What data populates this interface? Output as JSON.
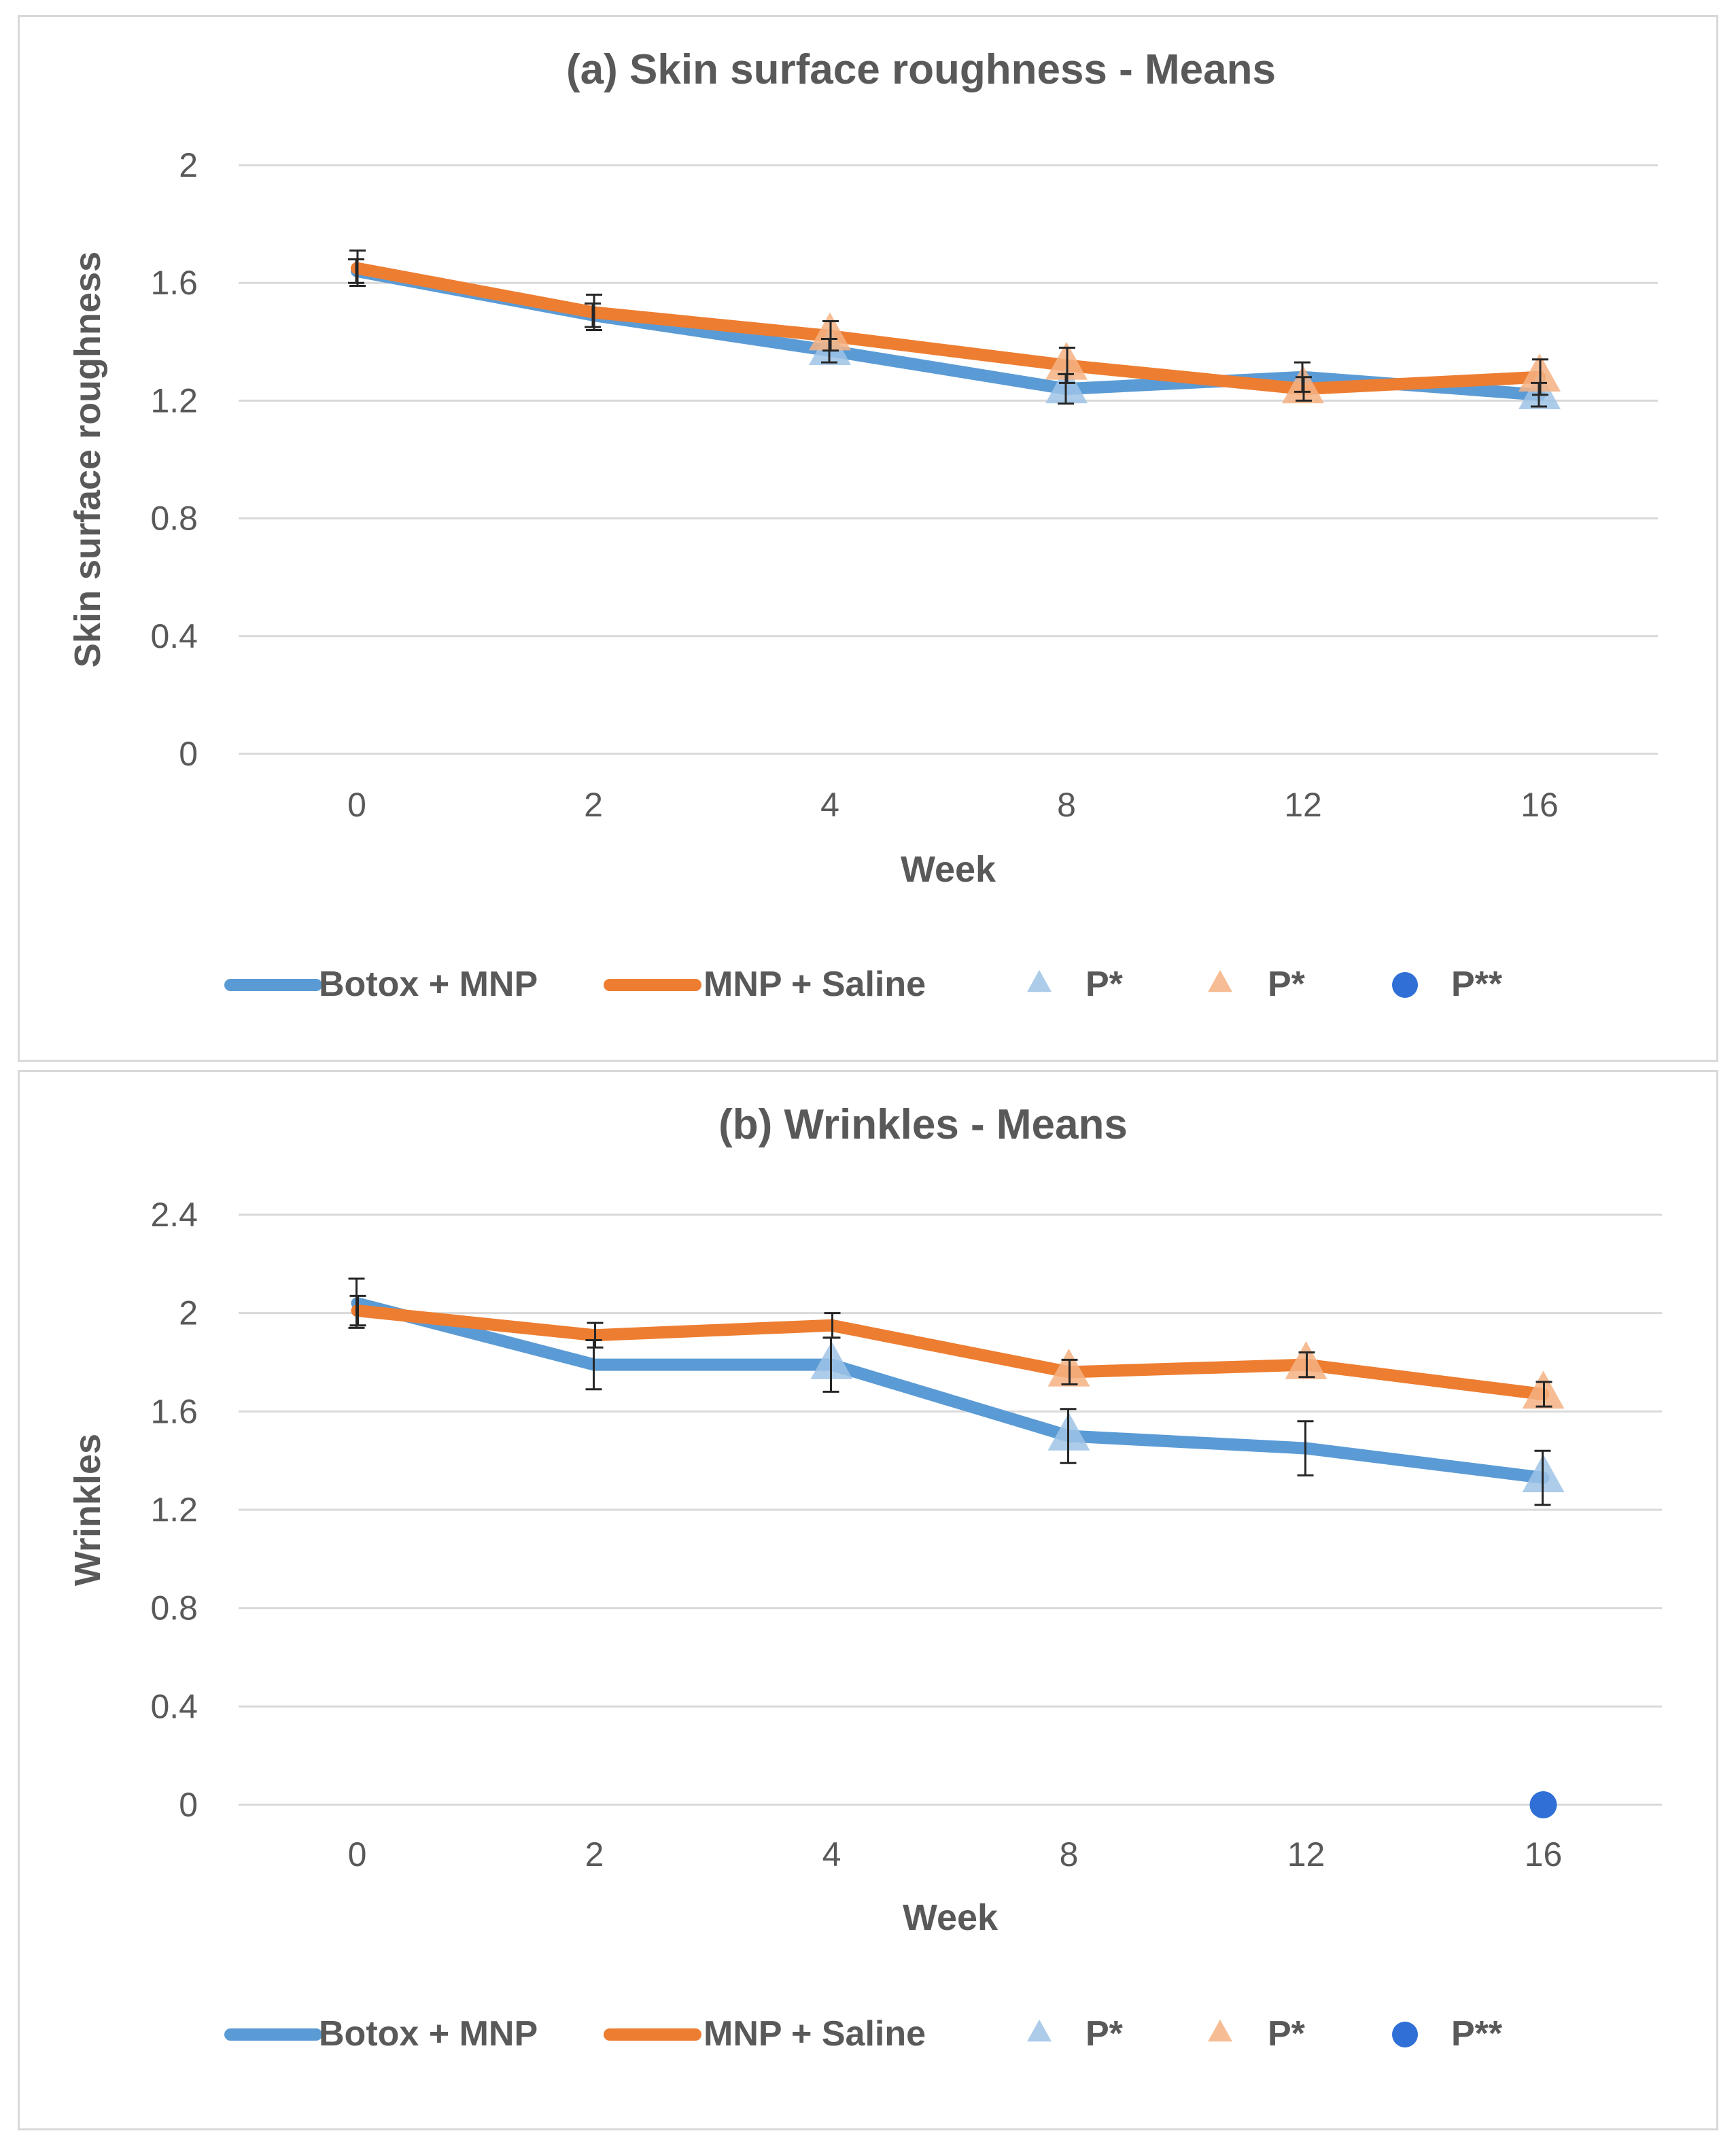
{
  "colors": {
    "blue": "#5b9bd5",
    "orange": "#ed7d31",
    "blue_marker": "#9dc3e6",
    "orange_marker": "#f4b183",
    "dot": "#2f6fd6",
    "text": "#595959",
    "grid": "#d9d9d9",
    "errorbar": "#262626"
  },
  "chart_data": [
    {
      "type": "line",
      "title": "(a) Skin surface roughness - Means",
      "xlabel": "Week",
      "ylabel": "Skin surface roughness",
      "categories": [
        "0",
        "2",
        "4",
        "8",
        "12",
        "16"
      ],
      "ylim": [
        0,
        2
      ],
      "yticks": [
        "0",
        "0.4",
        "0.8",
        "1.2",
        "1.6",
        "2"
      ],
      "ytick_values": [
        0,
        0.4,
        0.8,
        1.2,
        1.6,
        2
      ],
      "grid": true,
      "legend_position": "bottom",
      "series": [
        {
          "name": "Botox + MNP",
          "color_key": "blue",
          "values": [
            1.64,
            1.49,
            1.37,
            1.24,
            1.28,
            1.22
          ],
          "errors": [
            0.04,
            0.04,
            0.04,
            0.05,
            0.05,
            0.04
          ]
        },
        {
          "name": "MNP + Saline",
          "color_key": "orange",
          "values": [
            1.65,
            1.5,
            1.42,
            1.32,
            1.24,
            1.28
          ],
          "errors": [
            0.06,
            0.06,
            0.05,
            0.06,
            0.04,
            0.06
          ]
        }
      ],
      "markers": {
        "blue_triangles": [
          2,
          3,
          5
        ],
        "orange_triangles": [
          2,
          3,
          4,
          5
        ],
        "dots": []
      },
      "legend": [
        {
          "label": "Botox + MNP",
          "kind": "line",
          "color_key": "blue"
        },
        {
          "label": "MNP + Saline",
          "kind": "line",
          "color_key": "orange"
        },
        {
          "label": "P*",
          "kind": "triangle",
          "color_key": "blue_marker"
        },
        {
          "label": "P*",
          "kind": "triangle",
          "color_key": "orange_marker"
        },
        {
          "label": "P**",
          "kind": "dot",
          "color_key": "dot"
        }
      ]
    },
    {
      "type": "line",
      "title": "(b) Wrinkles - Means",
      "xlabel": "Week",
      "ylabel": "Wrinkles",
      "categories": [
        "0",
        "2",
        "4",
        "8",
        "12",
        "16"
      ],
      "ylim": [
        0,
        2.4
      ],
      "yticks": [
        "0",
        "0.4",
        "0.8",
        "1.2",
        "1.6",
        "2",
        "2.4"
      ],
      "ytick_values": [
        0,
        0.4,
        0.8,
        1.2,
        1.6,
        2.0,
        2.4
      ],
      "grid": true,
      "legend_position": "bottom",
      "series": [
        {
          "name": "Botox + MNP",
          "color_key": "blue",
          "values": [
            2.04,
            1.79,
            1.79,
            1.5,
            1.45,
            1.33
          ],
          "errors": [
            0.1,
            0.1,
            0.11,
            0.11,
            0.11,
            0.11
          ]
        },
        {
          "name": "MNP + Saline",
          "color_key": "orange",
          "values": [
            2.01,
            1.91,
            1.95,
            1.76,
            1.79,
            1.67
          ],
          "errors": [
            0.06,
            0.05,
            0.05,
            0.05,
            0.05,
            0.05
          ]
        }
      ],
      "markers": {
        "blue_triangles": [
          2,
          3,
          5
        ],
        "orange_triangles": [
          3,
          4,
          5
        ],
        "dots": [
          {
            "x_index": 5,
            "value": 0
          }
        ]
      },
      "legend": [
        {
          "label": "Botox + MNP",
          "kind": "line",
          "color_key": "blue"
        },
        {
          "label": "MNP + Saline",
          "kind": "line",
          "color_key": "orange"
        },
        {
          "label": "P*",
          "kind": "triangle",
          "color_key": "blue_marker"
        },
        {
          "label": "P*",
          "kind": "triangle",
          "color_key": "orange_marker"
        },
        {
          "label": "P**",
          "kind": "dot",
          "color_key": "dot"
        }
      ]
    }
  ]
}
